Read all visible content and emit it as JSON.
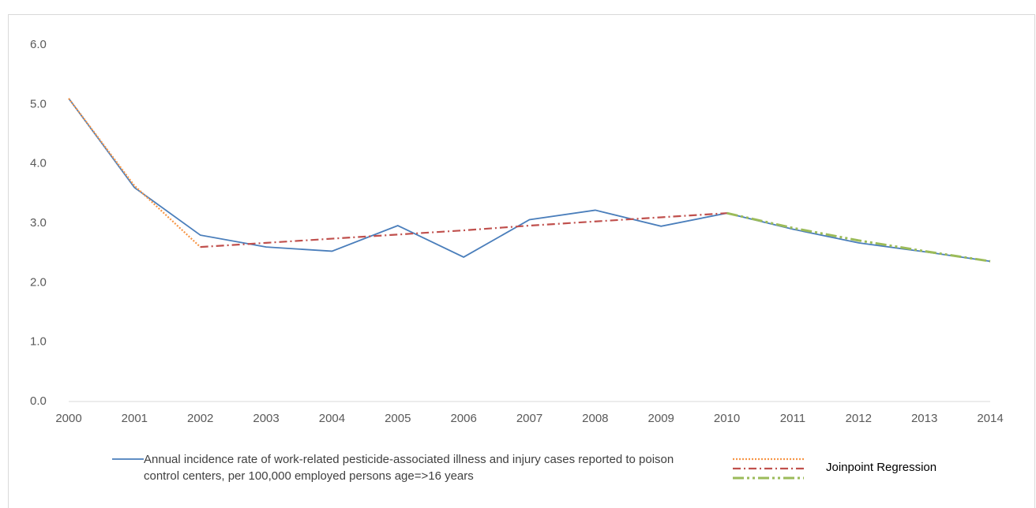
{
  "chart_data": {
    "type": "line",
    "x": [
      2000,
      2001,
      2002,
      2003,
      2004,
      2005,
      2006,
      2007,
      2008,
      2009,
      2010,
      2011,
      2012,
      2013,
      2014
    ],
    "xlim": [
      2000,
      2014
    ],
    "xticks": [
      2000,
      2001,
      2002,
      2003,
      2004,
      2005,
      2006,
      2007,
      2008,
      2009,
      2010,
      2011,
      2012,
      2013,
      2014
    ],
    "ylim": [
      0,
      6
    ],
    "yticks": [
      {
        "value": 0,
        "label": "0.0"
      },
      {
        "value": 1,
        "label": "1.0"
      },
      {
        "value": 2,
        "label": "2.0"
      },
      {
        "value": 3,
        "label": "3.0"
      },
      {
        "value": 4,
        "label": "4.0"
      },
      {
        "value": 5,
        "label": "5.0"
      },
      {
        "value": 6,
        "label": "6.0"
      }
    ],
    "grid": false,
    "series": [
      {
        "name": "Annual incidence rate of work-related pesticide-associated illness and injury cases reported to poison control centers, per 100,000 employed persons age=>16 years",
        "color": "#4a7ebb",
        "dash": "solid",
        "values": [
          5.1,
          3.6,
          2.8,
          2.6,
          2.53,
          2.96,
          2.43,
          3.06,
          3.22,
          2.95,
          3.17,
          2.9,
          2.67,
          2.52,
          2.36
        ]
      },
      {
        "color": "#f79646",
        "dash": "dotted",
        "values": [
          5.1,
          3.63,
          2.6,
          null,
          null,
          null,
          null,
          null,
          null,
          null,
          null,
          null,
          null,
          null,
          null
        ]
      },
      {
        "color": "#c0504d",
        "dash": "dash-dot",
        "values": [
          null,
          null,
          2.6,
          2.67,
          2.74,
          2.81,
          2.88,
          2.96,
          3.03,
          3.1,
          3.17,
          null,
          null,
          null,
          null
        ]
      },
      {
        "color": "#9bbb59",
        "dash": "long-dash-dot-dot",
        "values": [
          null,
          null,
          null,
          null,
          null,
          null,
          null,
          null,
          null,
          null,
          3.17,
          2.92,
          2.71,
          2.53,
          2.36
        ]
      }
    ],
    "joinpoint_label": "Joinpoint Regression"
  }
}
